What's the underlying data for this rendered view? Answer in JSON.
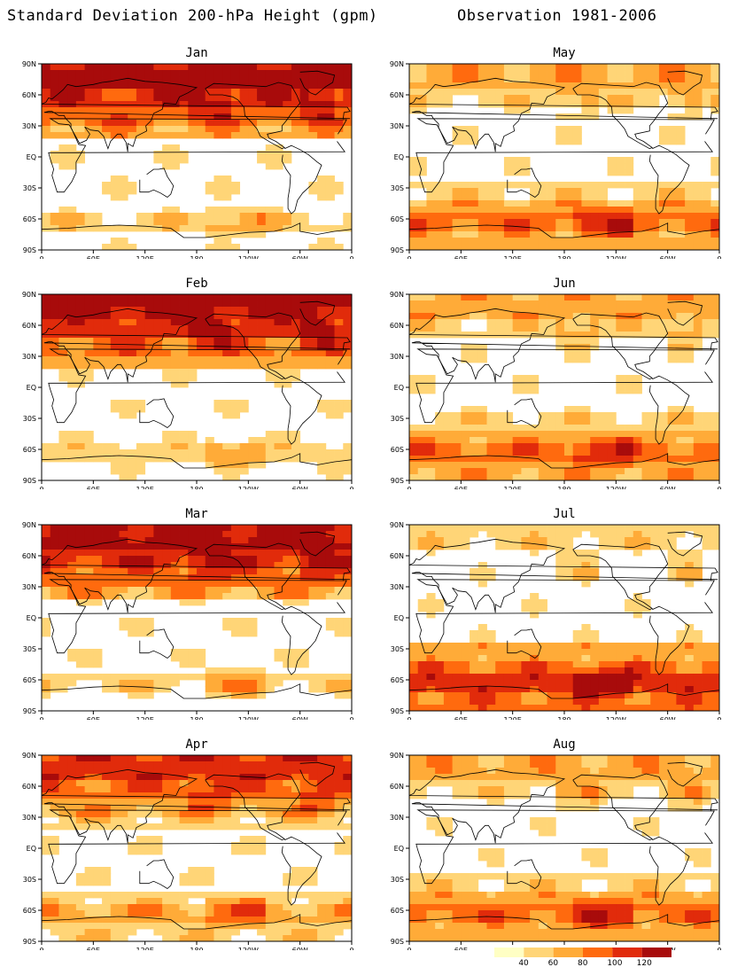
{
  "figure": {
    "title": "Standard Deviation 200-hPa Height (gpm)",
    "subtitle": "Observation  1981-2006"
  },
  "axes": {
    "y_ticks": [
      "90N",
      "60N",
      "30N",
      "EQ",
      "30S",
      "60S",
      "90S"
    ],
    "x_ticks": [
      "0",
      "60E",
      "120E",
      "180",
      "120W",
      "60W",
      "0"
    ]
  },
  "colorbar": {
    "colors": [
      "#ffffc4",
      "#ffd577",
      "#ffab38",
      "#ff6a0e",
      "#e12b0b",
      "#a80b0b"
    ],
    "tick_labels": [
      "40",
      "60",
      "80",
      "100",
      "120"
    ]
  },
  "panels": [
    {
      "month": "Jan",
      "level_north": 5,
      "level_south": 2
    },
    {
      "month": "May",
      "level_north": 2,
      "level_south": 4
    },
    {
      "month": "Feb",
      "level_north": 5,
      "level_south": 2
    },
    {
      "month": "Jun",
      "level_north": 2,
      "level_south": 4
    },
    {
      "month": "Mar",
      "level_north": 5,
      "level_south": 2
    },
    {
      "month": "Jul",
      "level_north": 1,
      "level_south": 5
    },
    {
      "month": "Apr",
      "level_north": 4,
      "level_south": 3
    },
    {
      "month": "Aug",
      "level_north": 2,
      "level_south": 4
    }
  ]
}
